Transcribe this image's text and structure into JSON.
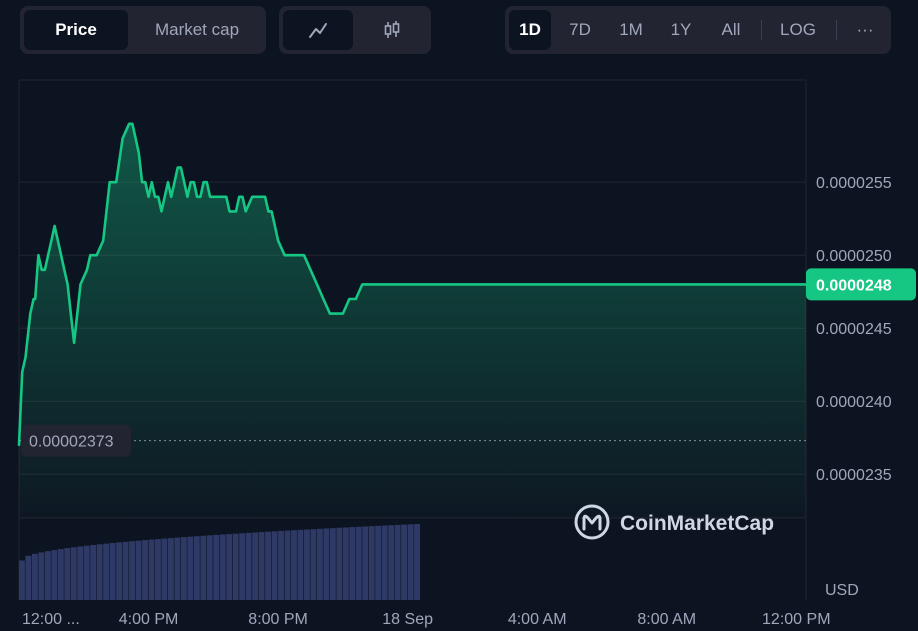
{
  "toolbar": {
    "metric_tabs": [
      {
        "label": "Price",
        "active": true
      },
      {
        "label": "Market cap",
        "active": false
      }
    ],
    "chart_type_icons": [
      {
        "icon": "line-chart-icon",
        "active": true
      },
      {
        "icon": "candlestick-icon",
        "active": false
      }
    ],
    "range_tabs": [
      {
        "label": "1D",
        "active": true
      },
      {
        "label": "7D",
        "active": false
      },
      {
        "label": "1M",
        "active": false
      },
      {
        "label": "1Y",
        "active": false
      },
      {
        "label": "All",
        "active": false
      }
    ],
    "log_label": "LOG",
    "more_label": "···"
  },
  "watermark": {
    "brand": "CoinMarketCap",
    "icon": "coinmarketcap-logo-icon"
  },
  "currency_label": "USD",
  "start_price_label": "0.00002373",
  "current_price_label": "0.0000248",
  "colors": {
    "line": "#16c784",
    "current_price_tag": "#16c784",
    "volume": "#2e3965",
    "background": "#0d1421"
  },
  "chart_data": {
    "type": "line",
    "title": "",
    "xlabel": "",
    "ylabel": "",
    "ylim": [
      2.32e-05,
      2.62e-05
    ],
    "y_ticks": [
      "0.0000235",
      "0.0000240",
      "0.0000245",
      "0.0000250",
      "0.0000255"
    ],
    "y_tick_values": [
      2.35e-05,
      2.4e-05,
      2.45e-05,
      2.5e-05,
      2.55e-05
    ],
    "x_ticks": [
      "12:00 ...",
      "4:00 PM",
      "8:00 PM",
      "18 Sep",
      "4:00 AM",
      "8:00 AM",
      "12:00 PM"
    ],
    "x_tick_hours": [
      12,
      16,
      20,
      24,
      28,
      32,
      36
    ],
    "xlim_hours": [
      12,
      36.3
    ],
    "start_reference": 2.373e-05,
    "current_price": 2.48e-05,
    "series": [
      {
        "hours": [
          12.0,
          12.1,
          12.2,
          12.35,
          12.45,
          12.5,
          12.6,
          12.7,
          12.8,
          12.9,
          13.0,
          13.1,
          13.3,
          13.4,
          13.5,
          13.6,
          13.7,
          13.9,
          14.1,
          14.2,
          14.4,
          14.6,
          14.8,
          15.0,
          15.2,
          15.4,
          15.5,
          15.6,
          15.7,
          15.8,
          15.9,
          16.0,
          16.1,
          16.2,
          16.3,
          16.4,
          16.5,
          16.6,
          16.7,
          16.8,
          16.9,
          17.0,
          17.1,
          17.2,
          17.3,
          17.4,
          17.5,
          17.6,
          17.7,
          17.8,
          17.9,
          18.0,
          18.2,
          18.4,
          18.5,
          18.6,
          18.7,
          18.8,
          18.9,
          19.0,
          19.2,
          19.4,
          19.6,
          19.7,
          19.8,
          19.9,
          20.0,
          20.2,
          20.4,
          20.6,
          20.8,
          21.0,
          21.2,
          21.4,
          21.6,
          21.8,
          21.9,
          22.0,
          22.2,
          22.4,
          22.6,
          22.8,
          23.0,
          23.2,
          23.4,
          23.5,
          23.6,
          23.7,
          23.8,
          23.9,
          24.0,
          24.2,
          24.4,
          24.6,
          24.8,
          25.0,
          26.0,
          28.0,
          30.0,
          32.0,
          34.0,
          36.3
        ],
        "values": [
          2.37e-05,
          2.42e-05,
          2.43e-05,
          2.46e-05,
          2.47e-05,
          2.47e-05,
          2.5e-05,
          2.49e-05,
          2.49e-05,
          2.5e-05,
          2.51e-05,
          2.52e-05,
          2.5e-05,
          2.49e-05,
          2.48e-05,
          2.46e-05,
          2.44e-05,
          2.48e-05,
          2.49e-05,
          2.5e-05,
          2.5e-05,
          2.51e-05,
          2.55e-05,
          2.55e-05,
          2.58e-05,
          2.59e-05,
          2.59e-05,
          2.58e-05,
          2.57e-05,
          2.55e-05,
          2.55e-05,
          2.54e-05,
          2.55e-05,
          2.54e-05,
          2.54e-05,
          2.53e-05,
          2.54e-05,
          2.55e-05,
          2.54e-05,
          2.55e-05,
          2.56e-05,
          2.56e-05,
          2.55e-05,
          2.54e-05,
          2.55e-05,
          2.55e-05,
          2.54e-05,
          2.54e-05,
          2.55e-05,
          2.55e-05,
          2.54e-05,
          2.54e-05,
          2.54e-05,
          2.54e-05,
          2.53e-05,
          2.53e-05,
          2.53e-05,
          2.54e-05,
          2.54e-05,
          2.53e-05,
          2.54e-05,
          2.54e-05,
          2.54e-05,
          2.53e-05,
          2.53e-05,
          2.52e-05,
          2.51e-05,
          2.5e-05,
          2.5e-05,
          2.5e-05,
          2.5e-05,
          2.49e-05,
          2.48e-05,
          2.47e-05,
          2.46e-05,
          2.46e-05,
          2.46e-05,
          2.46e-05,
          2.47e-05,
          2.47e-05,
          2.48e-05,
          2.48e-05,
          2.48e-05,
          2.48e-05,
          2.48e-05,
          2.48e-05,
          2.48e-05,
          2.48e-05,
          2.48e-05,
          2.48e-05,
          2.48e-05,
          2.48e-05,
          2.48e-05,
          2.48e-05,
          2.48e-05,
          2.48e-05,
          2.48e-05,
          2.48e-05,
          2.48e-05,
          2.48e-05,
          2.48e-05,
          2.48e-05
        ]
      }
    ],
    "volume": {
      "start_hour": 12.0,
      "end_hour": 24.4,
      "bar_count": 62,
      "level_min": 0.52,
      "level_max": 1.0
    }
  }
}
